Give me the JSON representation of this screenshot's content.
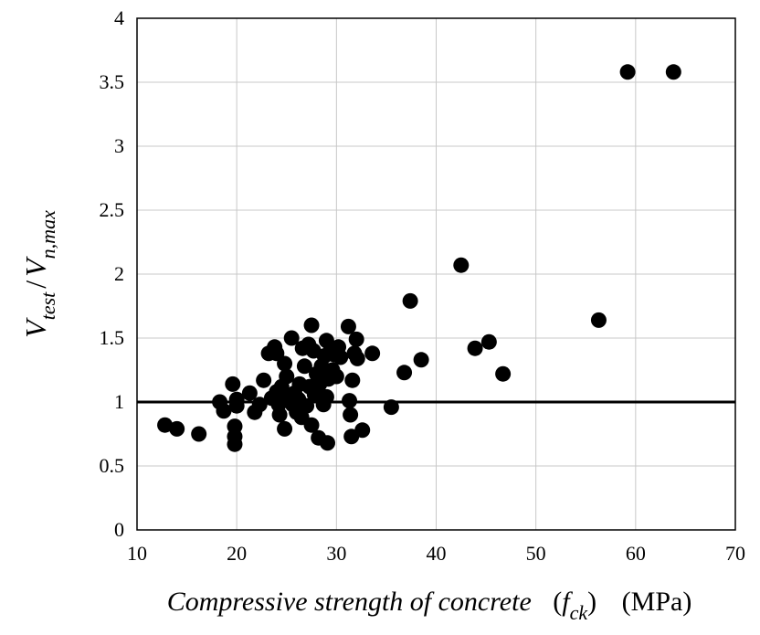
{
  "chart_data": {
    "type": "scatter",
    "xlim": [
      10,
      70
    ],
    "ylim": [
      0,
      4
    ],
    "x_ticks": [
      "10",
      "20",
      "30",
      "40",
      "50",
      "60",
      "70"
    ],
    "y_ticks": [
      "0",
      "0.5",
      "1",
      "1.5",
      "2",
      "2.5",
      "3",
      "3.5",
      "4"
    ],
    "x_ticks_values": [
      10,
      20,
      30,
      40,
      50,
      60,
      70
    ],
    "y_ticks_values": [
      0,
      0.5,
      1,
      1.5,
      2,
      2.5,
      3,
      3.5,
      4
    ],
    "grid": true,
    "xlabel": {
      "text": "Compressive strength of concrete",
      "symbol": "f",
      "symbol_sub": "ck",
      "unit": "(MPa)"
    },
    "ylabel": {
      "numerator": "V",
      "numerator_sub": "test",
      "separator": "/",
      "denominator": "V",
      "denominator_sub": "n,max"
    },
    "reference_line": {
      "y": 1.0
    },
    "marker_color": "#000000",
    "points": [
      {
        "x": 12.8,
        "y": 0.82
      },
      {
        "x": 14.0,
        "y": 0.79
      },
      {
        "x": 16.2,
        "y": 0.75
      },
      {
        "x": 18.3,
        "y": 1.0
      },
      {
        "x": 18.7,
        "y": 0.93
      },
      {
        "x": 19.6,
        "y": 1.14
      },
      {
        "x": 19.8,
        "y": 0.81
      },
      {
        "x": 19.8,
        "y": 0.73
      },
      {
        "x": 19.8,
        "y": 0.67
      },
      {
        "x": 20.0,
        "y": 0.97
      },
      {
        "x": 20.0,
        "y": 1.02
      },
      {
        "x": 21.3,
        "y": 1.07
      },
      {
        "x": 21.8,
        "y": 0.92
      },
      {
        "x": 22.3,
        "y": 0.98
      },
      {
        "x": 22.7,
        "y": 1.17
      },
      {
        "x": 23.2,
        "y": 1.38
      },
      {
        "x": 23.5,
        "y": 1.03
      },
      {
        "x": 23.8,
        "y": 1.43
      },
      {
        "x": 24.0,
        "y": 1.38
      },
      {
        "x": 24.0,
        "y": 1.08
      },
      {
        "x": 24.2,
        "y": 0.98
      },
      {
        "x": 24.3,
        "y": 0.9
      },
      {
        "x": 24.5,
        "y": 1.12
      },
      {
        "x": 24.6,
        "y": 1.02
      },
      {
        "x": 24.8,
        "y": 1.3
      },
      {
        "x": 24.8,
        "y": 0.79
      },
      {
        "x": 25.0,
        "y": 1.2
      },
      {
        "x": 25.2,
        "y": 1.05
      },
      {
        "x": 25.5,
        "y": 1.5
      },
      {
        "x": 25.6,
        "y": 0.98
      },
      {
        "x": 25.8,
        "y": 1.07
      },
      {
        "x": 26.0,
        "y": 0.92
      },
      {
        "x": 26.2,
        "y": 1.02
      },
      {
        "x": 26.3,
        "y": 1.14
      },
      {
        "x": 26.5,
        "y": 0.88
      },
      {
        "x": 26.6,
        "y": 1.42
      },
      {
        "x": 26.8,
        "y": 1.28
      },
      {
        "x": 27.0,
        "y": 0.97
      },
      {
        "x": 27.2,
        "y": 1.45
      },
      {
        "x": 27.3,
        "y": 1.12
      },
      {
        "x": 27.5,
        "y": 0.82
      },
      {
        "x": 27.5,
        "y": 1.6
      },
      {
        "x": 27.7,
        "y": 1.4
      },
      {
        "x": 27.8,
        "y": 1.06
      },
      {
        "x": 28.0,
        "y": 1.22
      },
      {
        "x": 28.1,
        "y": 1.07
      },
      {
        "x": 28.2,
        "y": 0.72
      },
      {
        "x": 28.3,
        "y": 1.14
      },
      {
        "x": 28.5,
        "y": 1.28
      },
      {
        "x": 28.7,
        "y": 0.98
      },
      {
        "x": 28.8,
        "y": 1.36
      },
      {
        "x": 29.0,
        "y": 1.48
      },
      {
        "x": 29.0,
        "y": 1.04
      },
      {
        "x": 29.1,
        "y": 0.68
      },
      {
        "x": 29.2,
        "y": 1.18
      },
      {
        "x": 29.4,
        "y": 1.4
      },
      {
        "x": 29.6,
        "y": 1.25
      },
      {
        "x": 29.8,
        "y": 1.37
      },
      {
        "x": 30.0,
        "y": 1.2
      },
      {
        "x": 30.2,
        "y": 1.43
      },
      {
        "x": 30.4,
        "y": 1.35
      },
      {
        "x": 31.2,
        "y": 1.59
      },
      {
        "x": 31.3,
        "y": 1.01
      },
      {
        "x": 31.4,
        "y": 0.9
      },
      {
        "x": 31.5,
        "y": 0.73
      },
      {
        "x": 31.6,
        "y": 1.17
      },
      {
        "x": 31.8,
        "y": 1.38
      },
      {
        "x": 32.0,
        "y": 1.49
      },
      {
        "x": 32.1,
        "y": 1.34
      },
      {
        "x": 32.6,
        "y": 0.78
      },
      {
        "x": 33.6,
        "y": 1.38
      },
      {
        "x": 35.5,
        "y": 0.96
      },
      {
        "x": 36.8,
        "y": 1.23
      },
      {
        "x": 37.4,
        "y": 1.79
      },
      {
        "x": 38.5,
        "y": 1.33
      },
      {
        "x": 42.5,
        "y": 2.07
      },
      {
        "x": 43.9,
        "y": 1.42
      },
      {
        "x": 45.3,
        "y": 1.47
      },
      {
        "x": 46.7,
        "y": 1.22
      },
      {
        "x": 56.3,
        "y": 1.64
      },
      {
        "x": 59.2,
        "y": 3.58
      },
      {
        "x": 63.8,
        "y": 3.58
      }
    ]
  }
}
